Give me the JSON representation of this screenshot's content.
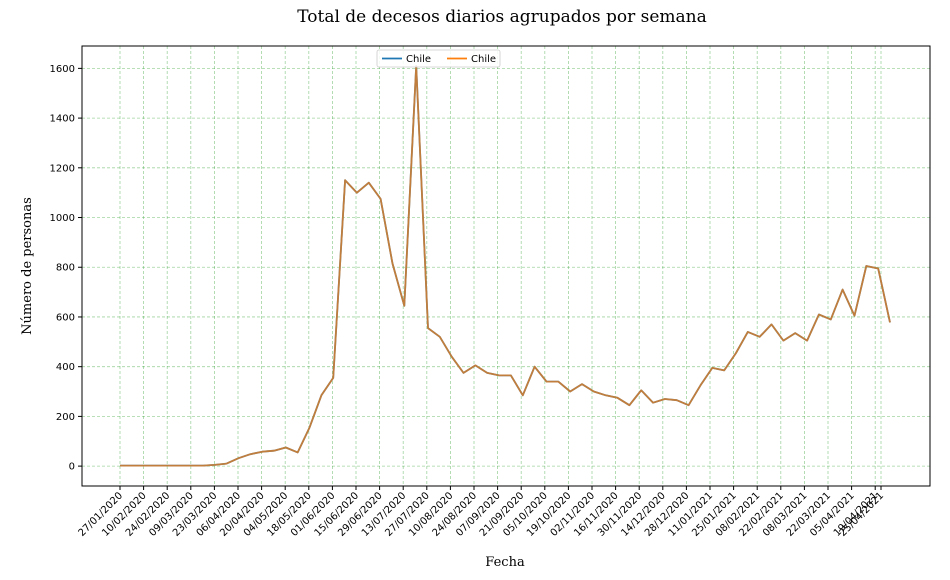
{
  "chart_data": {
    "type": "line",
    "title": "Total de decesos diarios agrupados por semana",
    "xlabel": "Fecha",
    "ylabel": "Número de personas",
    "ylim": [
      -80,
      1690
    ],
    "y_ticks": [
      0,
      200,
      400,
      600,
      800,
      1000,
      1200,
      1400,
      1600
    ],
    "x_tick_labels": [
      "27/01/2020",
      "10/02/2020",
      "24/02/2020",
      "09/03/2020",
      "23/03/2020",
      "06/04/2020",
      "20/04/2020",
      "04/05/2020",
      "18/05/2020",
      "01/06/2020",
      "15/06/2020",
      "29/06/2020",
      "13/07/2020",
      "27/07/2020",
      "10/08/2020",
      "24/08/2020",
      "07/09/2020",
      "21/09/2020",
      "05/10/2020",
      "19/10/2020",
      "02/11/2020",
      "16/11/2020",
      "30/11/2020",
      "14/12/2020",
      "28/12/2020",
      "11/01/2021",
      "25/01/2021",
      "08/02/2021",
      "22/02/2021",
      "08/03/2021",
      "22/03/2021",
      "05/04/2021",
      "19/04/2021",
      "25/04/2021"
    ],
    "grid": true,
    "legend_position": "top-center",
    "series": [
      {
        "name": "Chile",
        "color": "#1f77b4",
        "values": [
          2,
          2,
          2,
          2,
          2,
          2,
          2,
          2,
          5,
          10,
          32,
          48,
          58,
          62,
          75,
          55,
          155,
          285,
          355,
          1150,
          1100,
          1140,
          1075,
          815,
          645,
          1610,
          555,
          520,
          440,
          375,
          405,
          375,
          365,
          365,
          285,
          400,
          340,
          340,
          300,
          330,
          300,
          285,
          275,
          245,
          305,
          255,
          270,
          265,
          245,
          325,
          395,
          385,
          455,
          540,
          520,
          570,
          505,
          535,
          505,
          610,
          590,
          710,
          605,
          805,
          795,
          578
        ]
      },
      {
        "name": "Chile",
        "color": "#ff7f0e",
        "values": [
          2,
          2,
          2,
          2,
          2,
          2,
          2,
          2,
          5,
          10,
          32,
          48,
          58,
          62,
          75,
          55,
          155,
          285,
          355,
          1150,
          1100,
          1140,
          1075,
          815,
          645,
          1610,
          555,
          520,
          440,
          375,
          405,
          375,
          365,
          365,
          285,
          400,
          340,
          340,
          300,
          330,
          300,
          285,
          275,
          245,
          305,
          255,
          270,
          265,
          245,
          325,
          395,
          385,
          455,
          540,
          520,
          570,
          505,
          535,
          505,
          610,
          590,
          710,
          605,
          805,
          795,
          578
        ]
      }
    ]
  }
}
